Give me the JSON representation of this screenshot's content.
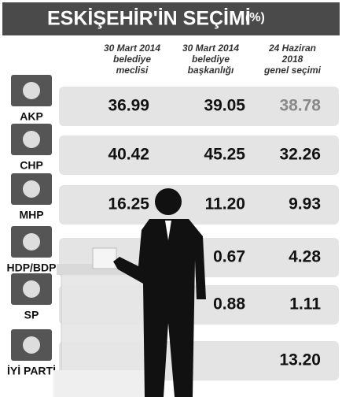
{
  "title": "ESKİŞEHİR'İN SEÇİMİ",
  "unit": "(%)",
  "columns": [
    "30 Mart 2014 belediye meclisi",
    "30 Mart 2014 belediye başkanlığı",
    "24 Haziran 2018 genel seçimi"
  ],
  "rows": [
    {
      "party": "AKP",
      "values": [
        "36.99",
        "39.05",
        "38.78"
      ]
    },
    {
      "party": "CHP",
      "values": [
        "40.42",
        "45.25",
        "32.26"
      ]
    },
    {
      "party": "MHP",
      "values": [
        "16.25",
        "11.20",
        "9.93"
      ]
    },
    {
      "party": "HDP/BDP",
      "values": [
        null,
        "0.67",
        "4.28"
      ]
    },
    {
      "party": "SP",
      "values": [
        null,
        "0.88",
        "1.11"
      ]
    },
    {
      "party": "İYİ PARTİ",
      "values": [
        null,
        null,
        "13.20"
      ]
    }
  ]
}
